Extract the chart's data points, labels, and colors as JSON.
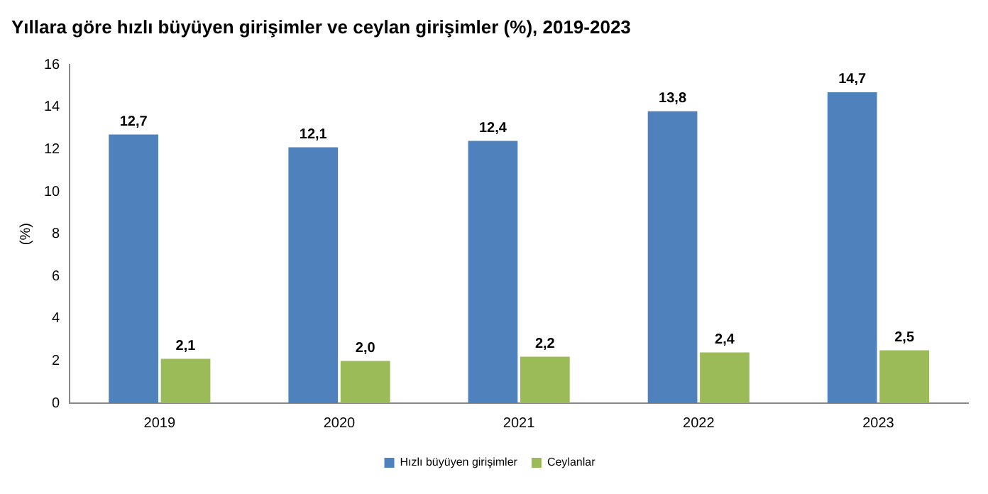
{
  "chart_data": {
    "type": "bar",
    "title": "Yıllara göre hızlı büyüyen girişimler ve ceylan girişimler (%), 2019-2023",
    "ylabel": "(%)",
    "categories": [
      "2019",
      "2020",
      "2021",
      "2022",
      "2023"
    ],
    "series": [
      {
        "name": "Hızlı büyüyen girişimler",
        "color": "#4f81bd",
        "values": [
          12.7,
          12.1,
          12.4,
          13.8,
          14.7
        ],
        "value_labels": [
          "12,7",
          "12,1",
          "12,4",
          "13,8",
          "14,7"
        ]
      },
      {
        "name": "Ceylanlar",
        "color": "#9bbb59",
        "values": [
          2.1,
          2.0,
          2.2,
          2.4,
          2.5
        ],
        "value_labels": [
          "2,1",
          "2,0",
          "2,2",
          "2,4",
          "2,5"
        ]
      }
    ],
    "ylim": [
      0,
      16
    ],
    "yticks": [
      0,
      2,
      4,
      6,
      8,
      10,
      12,
      14,
      16
    ],
    "grid": false,
    "legend": "bottom"
  }
}
